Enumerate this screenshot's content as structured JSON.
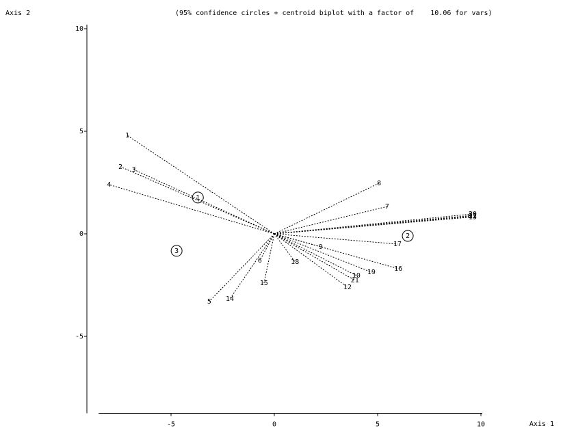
{
  "chart_data": {
    "type": "biplot",
    "title": "(95% confidence circles + centroid biplot with a factor of    10.06 for vars)",
    "x_label": "Axis  1",
    "y_label": "Axis  2",
    "xlim": [
      -8.5,
      10
    ],
    "ylim": [
      -8.75,
      10.1
    ],
    "xticks": [
      -5,
      0,
      5,
      10
    ],
    "yticks": [
      -5,
      0,
      5,
      10
    ],
    "color": "#000000",
    "variables": {
      "labels": [
        "1",
        "2",
        "3",
        "4",
        "5",
        "6",
        "7",
        "8",
        "9",
        "10",
        "12",
        "14",
        "15",
        "16",
        "17",
        "18",
        "19",
        "21",
        "11",
        "13",
        "20",
        "22"
      ],
      "x": [
        -7.12,
        -7.45,
        -6.8,
        -8.0,
        -3.15,
        -0.7,
        5.46,
        5.07,
        2.25,
        3.97,
        3.54,
        -2.15,
        -0.5,
        6.0,
        5.96,
        1.0,
        4.7,
        3.9,
        9.6,
        9.6,
        9.6,
        9.6
      ],
      "y": [
        4.8,
        3.27,
        3.13,
        2.4,
        -3.3,
        -1.3,
        1.33,
        2.47,
        -0.63,
        -2.03,
        -2.6,
        -3.17,
        -2.4,
        -1.7,
        -0.5,
        -1.37,
        -1.87,
        -2.27,
        0.9,
        0.82,
        0.97,
        0.86
      ]
    },
    "centroids": {
      "labels": [
        "1",
        "2",
        "3"
      ],
      "x": [
        -3.7,
        6.46,
        -4.73
      ],
      "y": [
        1.77,
        -0.1,
        -0.83
      ]
    }
  }
}
